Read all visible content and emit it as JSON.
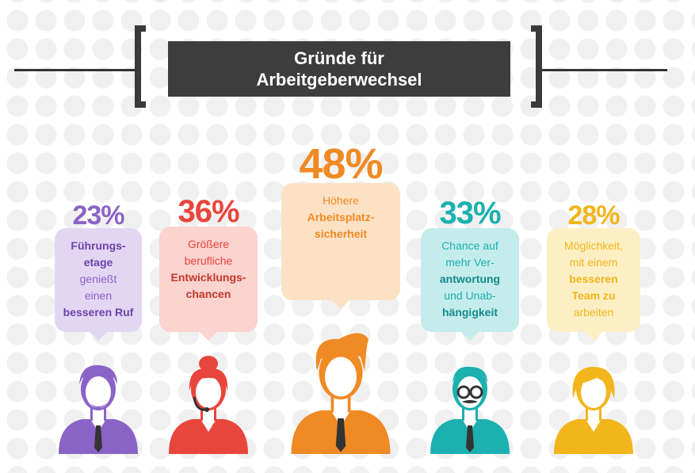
{
  "title": {
    "line1": "Gründe für",
    "line2": "Arbeitgeberwechsel"
  },
  "chart_data": {
    "type": "bar",
    "title": "Gründe für Arbeitgeberwechsel",
    "categories": [
      "Führungsetage genießt einen besseren Ruf",
      "Größere berufliche Entwicklungschancen",
      "Höhere Arbeitsplatzsicherheit",
      "Chance auf mehr Verantwortung und Unabhängigkeit",
      "Möglichkeit, mit einem besseren Team zu arbeiten"
    ],
    "values": [
      23,
      36,
      48,
      33,
      28
    ],
    "unit": "%"
  },
  "items": [
    {
      "percent": "23%",
      "color": "#8a63c7",
      "bubble_color": "#e3d6f3",
      "lines": [
        {
          "text": "Führungs-",
          "bold": true
        },
        {
          "text": "etage",
          "bold": true
        },
        {
          "text": "genießt",
          "bold": false
        },
        {
          "text": "einen",
          "bold": false
        },
        {
          "text": "besseren Ruf",
          "bold": true
        }
      ]
    },
    {
      "percent": "36%",
      "color": "#e8453c",
      "bubble_color": "#fbd3cf",
      "lines": [
        {
          "text": "Größere",
          "bold": false
        },
        {
          "text": "berufliche",
          "bold": false
        },
        {
          "text": "Entwicklungs-",
          "bold": true
        },
        {
          "text": "chancen",
          "bold": true
        }
      ]
    },
    {
      "percent": "48%",
      "color": "#f08a24",
      "bubble_color": "#fde1c4",
      "lines": [
        {
          "text": "Höhere",
          "bold": false
        },
        {
          "text": "Arbeitsplatz-",
          "bold": true
        },
        {
          "text": "sicherheit",
          "bold": true
        }
      ]
    },
    {
      "percent": "33%",
      "color": "#1cb0b0",
      "bubble_color": "#c5ecec",
      "lines": [
        {
          "text": "Chance auf",
          "bold": false
        },
        {
          "text": "mehr Ver-",
          "bold": false
        },
        {
          "text": "antwortung",
          "bold": true
        },
        {
          "text": "und Unab-",
          "bold": false
        },
        {
          "text": "hängigkeit",
          "bold": true
        }
      ]
    },
    {
      "percent": "28%",
      "color": "#f2b61c",
      "bubble_color": "#fdefc4",
      "lines": [
        {
          "text": "Möglichkeit,",
          "bold": false
        },
        {
          "text": "mit einem",
          "bold": false
        },
        {
          "text": "besseren",
          "bold": true
        },
        {
          "text": "Team zu",
          "bold": true
        },
        {
          "text": "arbeiten",
          "bold": false
        }
      ]
    }
  ],
  "icons": [
    "bearded-man-icon",
    "headset-woman-icon",
    "businessman-icon",
    "glasses-man-icon",
    "woman-icon"
  ]
}
